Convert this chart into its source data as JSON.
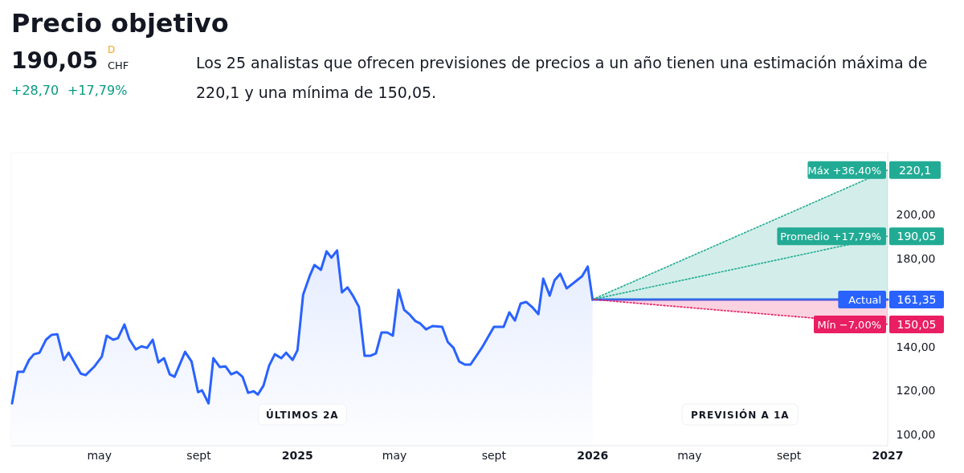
{
  "chart_data": {
    "type": "area",
    "title": "Precio objetivo",
    "subtitle": "Los 25 analistas que ofrecen previsiones de precios a un año tienen una estimación máxima de 220,1 y una mínima de 150,05.",
    "annotations": [
      "190,05",
      "D",
      "CHF",
      "+28,70",
      "+17,79%",
      "ÚLTIMOS 2A",
      "PREVISIÓN A 1A"
    ],
    "xlim": [
      "2024-01-13",
      "2027-01-01"
    ],
    "xticks": [
      {
        "value": "2024-05-01",
        "label": "may"
      },
      {
        "value": "2024-09-01",
        "label": "sept"
      },
      {
        "value": "2025-01-01",
        "label": "2025"
      },
      {
        "value": "2025-05-01",
        "label": "may"
      },
      {
        "value": "2025-09-01",
        "label": "sept"
      },
      {
        "value": "2026-01-01",
        "label": "2026"
      },
      {
        "value": "2026-05-01",
        "label": "may"
      },
      {
        "value": "2026-09-01",
        "label": "sept"
      },
      {
        "value": "2027-01-01",
        "label": "2027"
      }
    ],
    "ylim": [
      95,
      228
    ],
    "yticks": [
      {
        "value": 100,
        "label": "100,00"
      },
      {
        "value": 120,
        "label": "120,00"
      },
      {
        "value": 140,
        "label": "140,00"
      },
      {
        "value": 180,
        "label": "180,00"
      },
      {
        "value": 200,
        "label": "200,00"
      }
    ],
    "legend": "right",
    "grid": false,
    "series": [
      {
        "color": "#2962ff",
        "x": [
          "2024-01-14",
          "2024-01-21",
          "2024-01-28",
          "2024-02-04",
          "2024-02-10",
          "2024-02-17",
          "2024-02-25",
          "2024-03-03",
          "2024-03-10",
          "2024-03-18",
          "2024-03-24",
          "2024-03-31",
          "2024-04-08",
          "2024-04-14",
          "2024-04-25",
          "2024-05-04",
          "2024-05-10",
          "2024-05-18",
          "2024-05-24",
          "2024-06-01",
          "2024-06-07",
          "2024-06-15",
          "2024-06-22",
          "2024-06-29",
          "2024-07-06",
          "2024-07-13",
          "2024-07-20",
          "2024-07-27",
          "2024-08-02",
          "2024-08-15",
          "2024-08-23",
          "2024-08-31",
          "2024-09-05",
          "2024-09-13",
          "2024-09-19",
          "2024-09-27",
          "2024-10-04",
          "2024-10-11",
          "2024-10-18",
          "2024-10-25",
          "2024-11-01",
          "2024-11-08",
          "2024-11-13",
          "2024-11-20",
          "2024-11-27",
          "2024-12-04",
          "2024-12-12",
          "2024-12-18",
          "2024-12-26",
          "2025-01-01",
          "2025-01-08",
          "2025-01-16",
          "2025-01-22",
          "2025-01-30",
          "2025-02-06",
          "2025-02-12",
          "2025-02-19",
          "2025-02-25",
          "2025-03-04",
          "2025-03-11",
          "2025-03-18",
          "2025-03-25",
          "2025-04-01",
          "2025-04-08",
          "2025-04-15",
          "2025-04-22",
          "2025-04-29",
          "2025-05-06",
          "2025-05-13",
          "2025-05-20",
          "2025-05-27",
          "2025-06-02",
          "2025-06-09",
          "2025-06-17",
          "2025-06-29",
          "2025-07-06",
          "2025-07-13",
          "2025-07-20",
          "2025-07-27",
          "2025-08-03",
          "2025-08-17",
          "2025-09-01",
          "2025-09-13",
          "2025-09-20",
          "2025-09-27",
          "2025-10-04",
          "2025-10-11",
          "2025-10-18",
          "2025-10-26",
          "2025-11-01",
          "2025-11-09",
          "2025-11-15",
          "2025-11-22",
          "2025-11-30",
          "2025-12-19",
          "2025-12-26",
          "2026-01-01"
        ],
        "values": [
          114.2,
          128.5,
          128.5,
          133.9,
          136.5,
          137.2,
          143.1,
          145.3,
          145.6,
          133.9,
          137.2,
          132.8,
          127.7,
          127.0,
          131.0,
          135.4,
          144.9,
          143.1,
          143.8,
          150.0,
          143.4,
          138.7,
          140.1,
          139.4,
          143.1,
          132.8,
          134.7,
          127.4,
          126.3,
          137.6,
          133.2,
          119.3,
          120.1,
          114.2,
          134.7,
          130.7,
          131.0,
          127.4,
          128.5,
          126.3,
          119.0,
          119.7,
          118.2,
          122.3,
          131.4,
          136.5,
          134.7,
          137.2,
          133.9,
          138.3,
          163.5,
          171.9,
          177.0,
          174.8,
          183.2,
          180.3,
          183.6,
          164.6,
          166.8,
          162.8,
          158.0,
          135.8,
          135.8,
          136.9,
          146.4,
          146.4,
          144.9,
          165.7,
          156.6,
          154.4,
          151.5,
          150.4,
          147.8,
          149.3,
          148.9,
          142.0,
          139.4,
          133.2,
          131.8,
          131.8,
          139.4,
          148.9,
          148.9,
          155.5,
          151.8,
          159.5,
          160.2,
          158.0,
          154.7,
          170.8,
          163.1,
          170.1,
          173.0,
          166.4,
          171.9,
          176.3,
          161.35
        ]
      },
      {
        "type": "line",
        "name": "Máx +36,40%",
        "color": "#22ab94",
        "line_style": "dotted",
        "x": [
          "2026-01-01",
          "2027-01-01"
        ],
        "values": [
          161.35,
          220.1
        ],
        "lower": [
          161.35,
          161.35
        ],
        "upper": [
          161.35,
          220.1
        ],
        "value_labels": [
          null,
          "220,1"
        ]
      },
      {
        "type": "line",
        "name": "Promedio +17,79%",
        "color": "#22ab94",
        "line_style": "dotted",
        "x": [
          "2026-01-01",
          "2027-01-01"
        ],
        "values": [
          161.35,
          190.05
        ],
        "value_labels": [
          null,
          "190,05"
        ]
      },
      {
        "type": "line",
        "name": "Actual",
        "color": "#2962ff",
        "line_style": "solid",
        "x": [
          "2026-01-01",
          "2027-01-01"
        ],
        "values": [
          161.35,
          161.35
        ],
        "value_labels": [
          null,
          "161,35"
        ]
      },
      {
        "type": "line",
        "name": "Mín −7,00%",
        "color": "#e91e63",
        "line_style": "dotted",
        "x": [
          "2026-01-01",
          "2027-01-01"
        ],
        "values": [
          161.35,
          150.05
        ],
        "lower": [
          161.35,
          150.05
        ],
        "upper": [
          161.35,
          161.35
        ],
        "value_labels": [
          null,
          "150,05"
        ]
      }
    ]
  }
}
